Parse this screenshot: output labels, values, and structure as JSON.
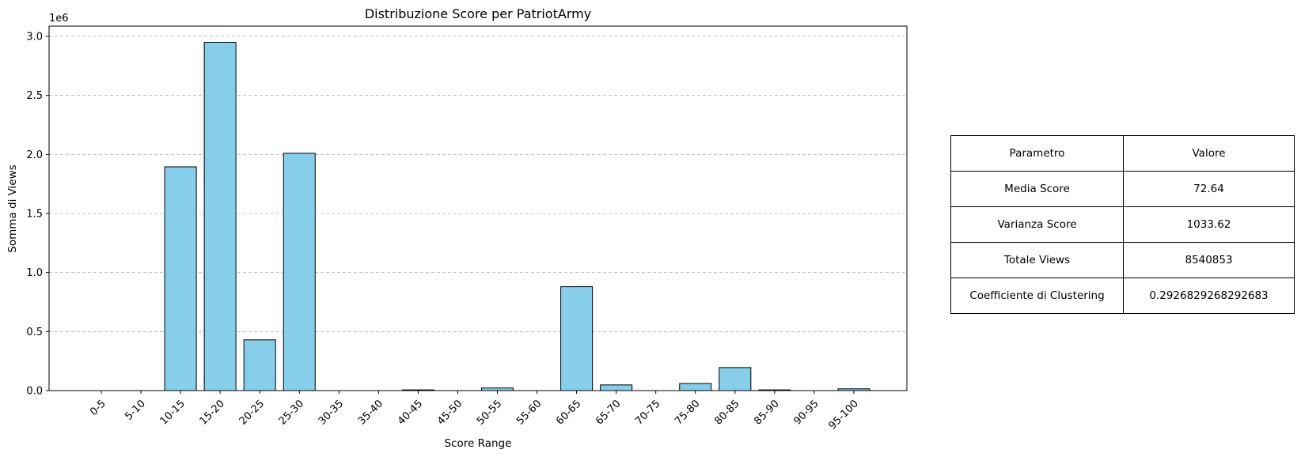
{
  "chart_data": {
    "type": "bar",
    "title": "Distribuzione Score per PatriotArmy",
    "xlabel": "Score Range",
    "ylabel": "Somma di Views",
    "y_multiplier_label": "1e6",
    "categories": [
      "0-5",
      "5-10",
      "10-15",
      "15-20",
      "20-25",
      "25-30",
      "30-35",
      "35-40",
      "40-45",
      "45-50",
      "50-55",
      "55-60",
      "60-65",
      "65-70",
      "70-75",
      "75-80",
      "80-85",
      "85-90",
      "90-95",
      "95-100"
    ],
    "values": [
      0,
      0,
      1895000,
      2950000,
      430000,
      2010000,
      0,
      0,
      6000,
      0,
      22000,
      0,
      880000,
      48000,
      0,
      60000,
      195000,
      6000,
      0,
      15000
    ],
    "yticks": [
      0,
      500000,
      1000000,
      1500000,
      2000000,
      2500000,
      3000000
    ],
    "ytick_labels": [
      "0.0",
      "0.5",
      "1.0",
      "1.5",
      "2.0",
      "2.5",
      "3.0"
    ],
    "ylim": [
      0,
      3100000
    ],
    "grid": "y-dashed",
    "bar_color": "#87CEEB",
    "edge_color": "#000000"
  },
  "table": {
    "header": [
      "Parametro",
      "Valore"
    ],
    "rows": [
      [
        "Media Score",
        "72.64"
      ],
      [
        "Varianza Score",
        "1033.62"
      ],
      [
        "Totale Views",
        "8540853"
      ],
      [
        "Coefficiente di Clustering",
        "0.2926829268292683"
      ]
    ]
  }
}
